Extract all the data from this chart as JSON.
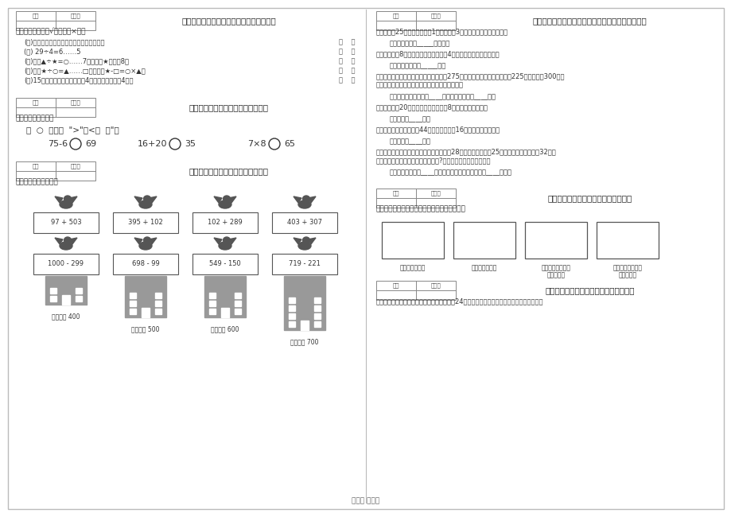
{
  "page_bg": "#ffffff",
  "text_color": "#333333",
  "footer": "第２页 共４页",
  "judge_items": [
    "(１)在有余数除法里，余数一定要比除数小。",
    "(２) 29÷4=6……5",
    "(３)如果▲÷★=○……7，那么，★最小是8。",
    "(４)如果★÷○=▲……□，那么，★-□=○×▲。",
    "(５)15个人乘船过河，每次可过4人，全都过去需要4次。"
  ],
  "compare_items": [
    [
      "75-6",
      "69"
    ],
    [
      "16+20",
      "35"
    ],
    [
      "7×8",
      "65"
    ]
  ],
  "bunny_row1": [
    "97 + 503",
    "395 + 102",
    "102 + 289",
    "403 + 307"
  ],
  "bunny_row2": [
    "1000 - 299",
    "698 - 99",
    "549 - 150",
    "719 - 221"
  ],
  "building_labels": [
    "得数接近 400",
    "得数大约 500",
    "得数接近 600",
    "得数大约 700"
  ],
  "problems": [
    {
      "q": "１、玲玲用25米布做衣服。做1套衣服要用3米，最多可以做几套衣服？",
      "a": "答：最多可以做_____套衣服。"
    },
    {
      "q": "２、小明今年8岁，爸爸的年龄是小明的4倍，爸爸比小明大多少岁？",
      "a": "答：爸爸比小明大_____岁。"
    },
    {
      "q": "３、一堆砖，第一天为小狗做房子，用了275块，第二天为小鸡做房子用了225块，还剩下300块。",
      "q2": "这堆砖比原来少了多少块？这堆砖原来有多少块？",
      "a": "答：这堆砖比原来少了____块。这堆砖原来有____块。"
    },
    {
      "q": "４、动物园有20只黑熊，黑熊比白熊多8只，白熊有多少只？",
      "a": "答：白熊有____只。"
    },
    {
      "q": "５、红领巾养鸡场有公鸒44只，母鸡比公鸒16只。母鸡有多少只？",
      "a": "答：母鸡有____只。"
    },
    {
      "q": "６、王大爷批发了一批水果回来，上午卖掄28千克，下午又卖掄25千克，这时发现还剩下32千克",
      "q2": "水果。王大爷批发了多少千克的水果?现在比原来少了多少千克？",
      "a": "答：王大爷批发了____千克的水果。现在比原来少了____千克。"
    }
  ],
  "rect_labels": [
    [
      "分成两个三角形"
    ],
    [
      "分成两个四边形"
    ],
    [
      "分成一个三角形和",
      "一个四边形"
    ],
    [
      "分成一个三角形和",
      "一个五边形"
    ]
  ],
  "addon_text": "１、光明小学为了使校园更美，在操场四周放24盆🌱，学校给我们一个机会，让大家做主意，"
}
